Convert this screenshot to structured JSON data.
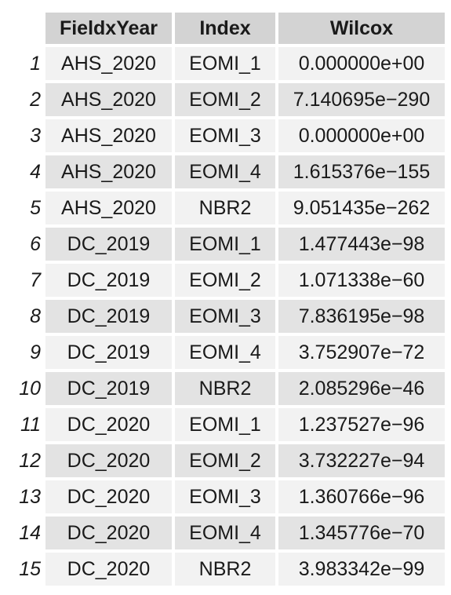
{
  "table": {
    "headers": [
      "",
      "FieldxYear",
      "Index",
      "Wilcox"
    ],
    "rows": [
      {
        "n": "1",
        "field": "AHS_2020",
        "index": "EOMI_1",
        "wilcox": "0.000000e+00"
      },
      {
        "n": "2",
        "field": "AHS_2020",
        "index": "EOMI_2",
        "wilcox": "7.140695e−290"
      },
      {
        "n": "3",
        "field": "AHS_2020",
        "index": "EOMI_3",
        "wilcox": "0.000000e+00"
      },
      {
        "n": "4",
        "field": "AHS_2020",
        "index": "EOMI_4",
        "wilcox": "1.615376e−155"
      },
      {
        "n": "5",
        "field": "AHS_2020",
        "index": "NBR2",
        "wilcox": "9.051435e−262"
      },
      {
        "n": "6",
        "field": "DC_2019",
        "index": "EOMI_1",
        "wilcox": "1.477443e−98"
      },
      {
        "n": "7",
        "field": "DC_2019",
        "index": "EOMI_2",
        "wilcox": "1.071338e−60"
      },
      {
        "n": "8",
        "field": "DC_2019",
        "index": "EOMI_3",
        "wilcox": "7.836195e−98"
      },
      {
        "n": "9",
        "field": "DC_2019",
        "index": "EOMI_4",
        "wilcox": "3.752907e−72"
      },
      {
        "n": "10",
        "field": "DC_2019",
        "index": "NBR2",
        "wilcox": "2.085296e−46"
      },
      {
        "n": "11",
        "field": "DC_2020",
        "index": "EOMI_1",
        "wilcox": "1.237527e−96"
      },
      {
        "n": "12",
        "field": "DC_2020",
        "index": "EOMI_2",
        "wilcox": "3.732227e−94"
      },
      {
        "n": "13",
        "field": "DC_2020",
        "index": "EOMI_3",
        "wilcox": "1.360766e−96"
      },
      {
        "n": "14",
        "field": "DC_2020",
        "index": "EOMI_4",
        "wilcox": "1.345776e−70"
      },
      {
        "n": "15",
        "field": "DC_2020",
        "index": "NBR2",
        "wilcox": "3.983342e−99"
      }
    ]
  }
}
